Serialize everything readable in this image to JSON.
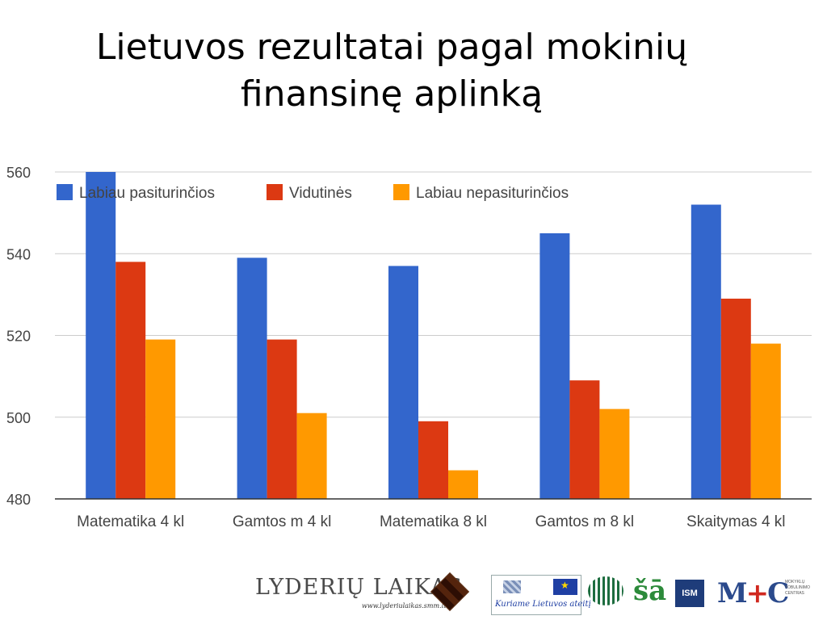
{
  "slide": {
    "title_line1": "Lietuvos rezultatai pagal mokinių",
    "title_line2": "finansinę aplinką"
  },
  "chart_data": {
    "type": "bar",
    "categories": [
      "Matematika 4 kl",
      "Gamtos m 4 kl",
      "Matematika 8 kl",
      "Gamtos m 8 kl",
      "Skaitymas 4 kl"
    ],
    "series": [
      {
        "name": "Labiau pasiturinčios",
        "color": "#3366cc",
        "values": [
          560,
          539,
          537,
          545,
          552
        ]
      },
      {
        "name": "Vidutinės",
        "color": "#dc3912",
        "values": [
          538,
          519,
          499,
          509,
          529
        ]
      },
      {
        "name": "Labiau nepasiturinčios",
        "color": "#ff9900",
        "values": [
          519,
          501,
          487,
          502,
          518
        ]
      }
    ],
    "ylim": [
      480,
      560
    ],
    "yticks": [
      480,
      500,
      520,
      540,
      560
    ],
    "grid": true,
    "legend": "top-left"
  },
  "footer": {
    "logo_lyderiu_text": "LYDERIŲ LAIKAS",
    "logo_lyderiu_url": "www.lyderiulaikas.smm.lt",
    "logo_eu_tagline": "Kuriame Lietuvos ateitį",
    "logo_ism_text": "ISM",
    "logo_mtc_text": "MOKYKLŲ TOBULINIMO CENTRAS"
  }
}
